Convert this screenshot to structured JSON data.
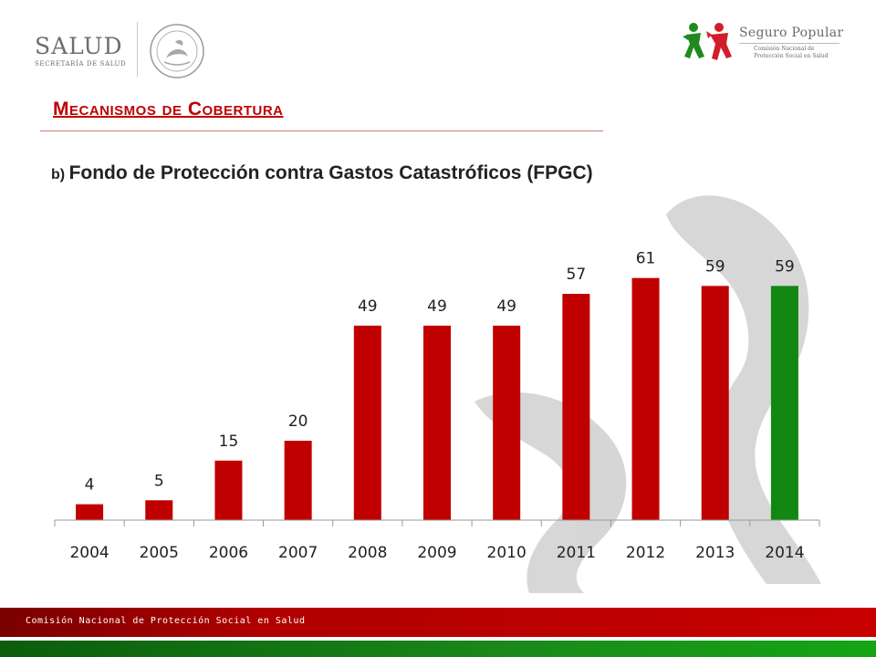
{
  "header": {
    "salud_logo_text": "SALUD",
    "salud_logo_subtext": "SECRETARÍA DE SALUD",
    "seguro_popular_title": "Seguro Popular",
    "seguro_popular_subtitle_line1": "Comisión Nacional de",
    "seguro_popular_subtitle_line2": "Protección Social en Salud"
  },
  "heading": "Mecanismos de Cobertura",
  "subtitle": {
    "prefix": "b)",
    "text": "Fondo de Protección contra Gastos Catastróficos (FPGC)"
  },
  "footer": {
    "text": "Comisión Nacional de Protección Social en Salud"
  },
  "colors": {
    "bar_red": "#c00000",
    "bar_green": "#128712",
    "heading_red": "#c00000",
    "watermark_gray": "#cccccc"
  },
  "chart_data": {
    "type": "bar",
    "categories": [
      "2004",
      "2005",
      "2006",
      "2007",
      "2008",
      "2009",
      "2010",
      "2011",
      "2012",
      "2013",
      "2014"
    ],
    "values": [
      4,
      5,
      15,
      20,
      49,
      49,
      49,
      57,
      61,
      59,
      59
    ],
    "highlight_last": true,
    "data_labels": true,
    "ylim": [
      0,
      70
    ],
    "grid": false,
    "title": "",
    "xlabel": "",
    "ylabel": ""
  }
}
